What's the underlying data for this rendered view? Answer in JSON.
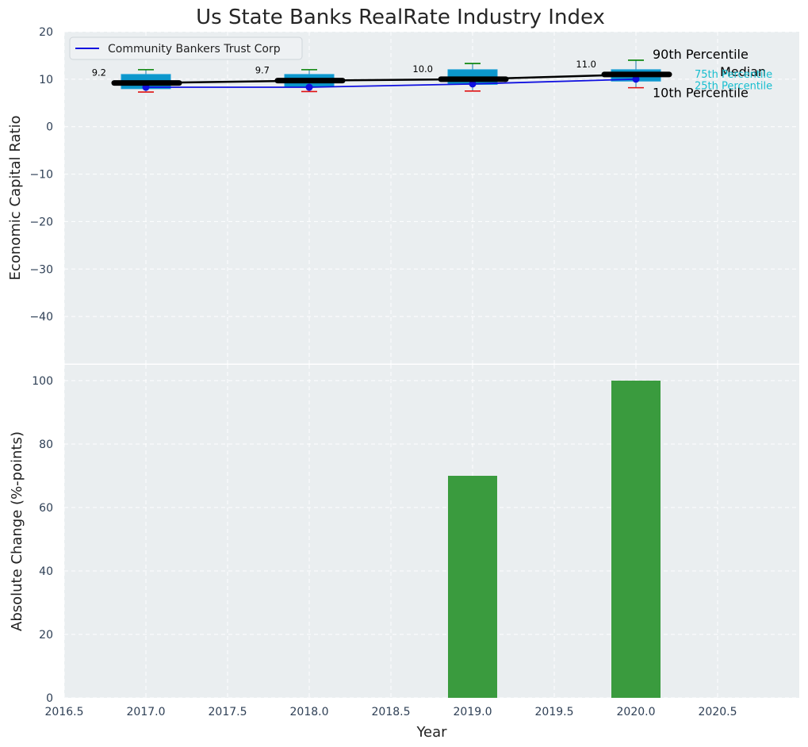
{
  "chart_title": "Us State Banks RealRate Industry Index",
  "colors": {
    "panel_bg": "#eaeef0",
    "grid": "#ffffff",
    "box_fill": "#0c97cc",
    "box_edge": "#1a9fd6",
    "whisker_high": "#008000",
    "whisker_low": "#e01010",
    "company_line": "#1010e0",
    "median_line": "#000000",
    "bar": "#3a9b3e",
    "quartile_text": "#17becf"
  },
  "chart_data": [
    {
      "type": "box",
      "panel": "top",
      "title": "Us State Banks RealRate Industry Index",
      "xlabel": "",
      "ylabel": "Economic Capital Ratio",
      "xlim": [
        2016.5,
        2021.0
      ],
      "ylim": [
        -50,
        20
      ],
      "yticks": [
        20,
        10,
        0,
        -10,
        -20,
        -30,
        -40
      ],
      "grid": true,
      "legend": {
        "placement": "top-left",
        "entries": [
          "Community Bankers Trust Corp"
        ]
      },
      "x": [
        2017,
        2018,
        2019,
        2020
      ],
      "p10": [
        7.3,
        7.4,
        7.5,
        8.2
      ],
      "p25": [
        8.0,
        8.4,
        8.9,
        9.6
      ],
      "median": [
        9.2,
        9.7,
        10.0,
        11.0
      ],
      "p75": [
        11.0,
        11.0,
        12.0,
        12.0
      ],
      "p90": [
        12.0,
        12.0,
        13.3,
        14.0
      ],
      "median_labels": [
        "9.2",
        "9.7",
        "10.0",
        "11.0"
      ],
      "series": [
        {
          "name": "Community Bankers Trust Corp",
          "values": [
            8.3,
            8.3,
            9.0,
            10.0
          ]
        }
      ],
      "annotations": {
        "p90": "90th Percentile",
        "median": "Median",
        "p10": "10th Percentile",
        "p75": "75th Percentile",
        "p25": "25th Percentile"
      }
    },
    {
      "type": "bar",
      "panel": "bottom",
      "xlabel": "Year",
      "ylabel": "Absolute Change (%-points)",
      "xlim": [
        2016.5,
        2021.0
      ],
      "ylim": [
        0,
        105
      ],
      "yticks": [
        0,
        20,
        40,
        60,
        80,
        100
      ],
      "xticks": [
        2016.5,
        2017.0,
        2017.5,
        2018.0,
        2018.5,
        2019.0,
        2019.5,
        2020.0,
        2020.5
      ],
      "xtick_labels": [
        "2016.5",
        "2017.0",
        "2017.5",
        "2018.0",
        "2018.5",
        "2019.0",
        "2019.5",
        "2020.0",
        "2020.5"
      ],
      "grid": true,
      "x": [
        2017,
        2018,
        2019,
        2020
      ],
      "values": [
        0,
        0,
        70,
        100
      ]
    }
  ]
}
